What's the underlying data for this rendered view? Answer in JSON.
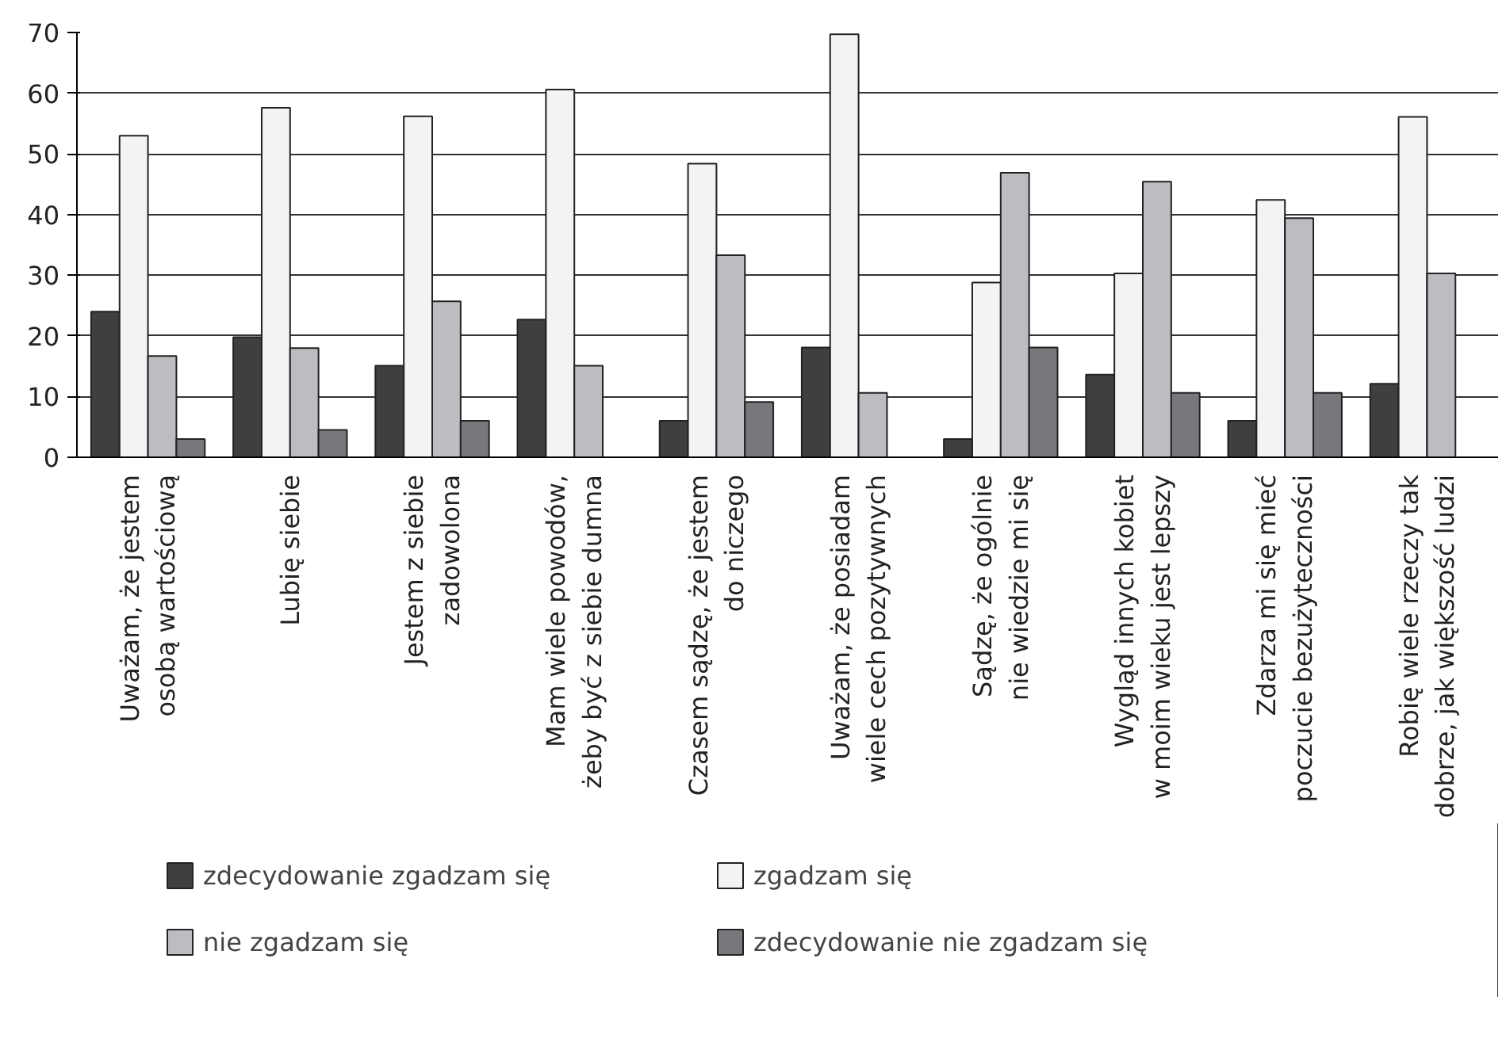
{
  "chart_data": {
    "type": "bar",
    "categories": [
      "Uważam, że jestem\nosobą wartościową",
      "Lubię siebie",
      "Jestem z siebie\nzadowolona",
      "Mam wiele powodów,\nżeby być z siebie dumna",
      "Czasem sądzę, że jestem\ndo niczego",
      "Uważam, że posiadam\nwiele cech pozytywnych",
      "Sądzę, że ogólnie\nnie wiedzie mi się",
      "Wygląd innych kobiet\nw moim wieku jest lepszy",
      "Zdarza mi się mieć\npoczucie bezużyteczności",
      "Robię wiele rzeczy tak\ndobrze, jak większość ludzi"
    ],
    "series": [
      {
        "name": "zdecydowanie zgadzam się",
        "color": "#3f3f3f",
        "values": [
          24,
          19.8,
          15.1,
          22.7,
          6,
          18.1,
          3,
          13.6,
          6,
          12.1
        ]
      },
      {
        "name": "zgadzam się",
        "color": "#f2f3f5",
        "values": [
          53,
          57.6,
          56.2,
          60.6,
          48.4,
          69.7,
          28.8,
          30.3,
          42.4,
          56.1
        ]
      },
      {
        "name": "nie zgadzam się",
        "color": "#bcbdc1",
        "values": [
          16.7,
          18,
          25.7,
          15.1,
          33.3,
          10.6,
          46.9,
          45.4,
          39.4,
          30.3
        ]
      },
      {
        "name": "zdecydowanie nie zgadzam się",
        "color": "#77787c",
        "values": [
          3,
          4.5,
          6,
          0,
          9.1,
          0,
          18.1,
          10.6,
          10.6,
          0
        ]
      }
    ],
    "ylim": [
      0,
      70
    ],
    "yticks": [
      0,
      10,
      20,
      30,
      40,
      50,
      60,
      70
    ],
    "grid": "y",
    "legend": "bottom"
  }
}
